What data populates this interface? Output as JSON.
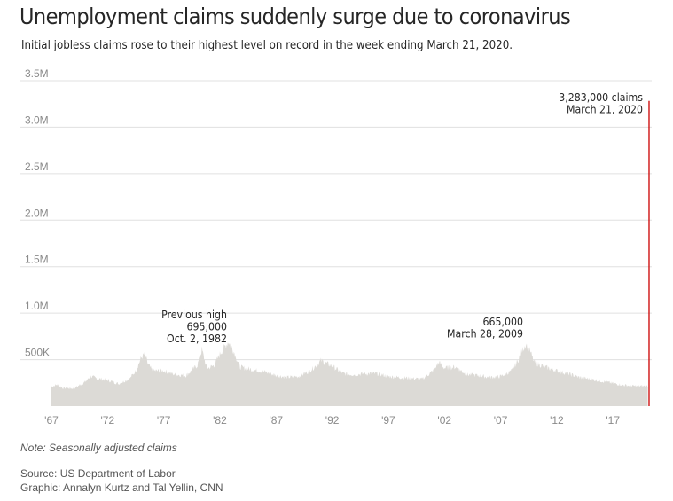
{
  "header": {
    "title": "Unemployment claims suddenly surge due to coronavirus",
    "subtitle": "Initial jobless claims rose to their highest level on record in the week ending March 21, 2020."
  },
  "footer": {
    "note": "Note: Seasonally adjusted claims",
    "source": "Source: US Department of Labor",
    "graphic": "Graphic: Annalyn Kurtz and Tal Yellin, CNN"
  },
  "colors": {
    "area": "#dcdad6",
    "spike": "#cc0000",
    "grid": "#e0e0e0",
    "text": "#262626",
    "axis": "#8a8a8a"
  },
  "chart_data": {
    "type": "area",
    "title": "Unemployment claims suddenly surge due to coronavirus",
    "xlabel": "",
    "ylabel": "",
    "xlim": [
      1967,
      2020.3
    ],
    "ylim": [
      0,
      3500000
    ],
    "grid": true,
    "y_ticks": [
      {
        "value": 500000,
        "label": "500K"
      },
      {
        "value": 1000000,
        "label": "1.0M"
      },
      {
        "value": 1500000,
        "label": "1.5M"
      },
      {
        "value": 2000000,
        "label": "2.0M"
      },
      {
        "value": 2500000,
        "label": "2.5M"
      },
      {
        "value": 3000000,
        "label": "3.0M"
      },
      {
        "value": 3500000,
        "label": "3.5M"
      }
    ],
    "x_ticks": [
      {
        "value": 1967,
        "label": "'67"
      },
      {
        "value": 1972,
        "label": "'72"
      },
      {
        "value": 1977,
        "label": "'77"
      },
      {
        "value": 1982,
        "label": "'82"
      },
      {
        "value": 1987,
        "label": "'87"
      },
      {
        "value": 1992,
        "label": "'92"
      },
      {
        "value": 1997,
        "label": "'97"
      },
      {
        "value": 2002,
        "label": "'02"
      },
      {
        "value": 2007,
        "label": "'07"
      },
      {
        "value": 2012,
        "label": "'12"
      },
      {
        "value": 2017,
        "label": "'17"
      }
    ],
    "series": [
      {
        "name": "Initial jobless claims (seasonally adjusted)",
        "x": [
          1967,
          1967.5,
          1968,
          1969,
          1970,
          1970.5,
          1971,
          1972,
          1973,
          1974,
          1974.5,
          1975,
          1975.3,
          1975.6,
          1976,
          1977,
          1978,
          1979,
          1980,
          1980.4,
          1980.8,
          1981,
          1981.5,
          1982,
          1982.75,
          1983.2,
          1983.8,
          1985,
          1986,
          1987,
          1988,
          1989,
          1990,
          1990.5,
          1991,
          1991.5,
          1992,
          1993,
          1994,
          1995,
          1996,
          1997,
          1998,
          1999,
          2000,
          2001,
          2001.5,
          2002,
          2003,
          2003.5,
          2004,
          2005,
          2006,
          2007,
          2008,
          2008.5,
          2009,
          2009.25,
          2009.6,
          2010,
          2011,
          2012,
          2013,
          2014,
          2015,
          2016,
          2017,
          2018,
          2019,
          2020.1
        ],
        "values": [
          210000,
          230000,
          195000,
          190000,
          260000,
          320000,
          300000,
          280000,
          240000,
          300000,
          380000,
          520000,
          560000,
          450000,
          380000,
          380000,
          340000,
          330000,
          440000,
          610000,
          420000,
          410000,
          440000,
          560000,
          695000,
          600000,
          420000,
          390000,
          370000,
          330000,
          310000,
          320000,
          380000,
          430000,
          490000,
          460000,
          430000,
          350000,
          340000,
          350000,
          350000,
          320000,
          310000,
          300000,
          290000,
          380000,
          470000,
          410000,
          420000,
          380000,
          340000,
          330000,
          310000,
          320000,
          380000,
          480000,
          620000,
          665000,
          600000,
          470000,
          420000,
          380000,
          350000,
          310000,
          290000,
          270000,
          245000,
          225000,
          215000,
          215000
        ]
      },
      {
        "name": "Week ending March 21, 2020",
        "x": [
          2020.22
        ],
        "values": [
          3283000
        ]
      }
    ],
    "annotations": [
      {
        "lines": [
          "Previous high",
          "695,000",
          "Oct. 2, 1982"
        ],
        "x": 1982.75,
        "value": 695000
      },
      {
        "lines": [
          "665,000",
          "March 28, 2009"
        ],
        "x": 2009.24,
        "value": 665000
      },
      {
        "lines": [
          "3,283,000 claims",
          "March 21, 2020"
        ],
        "x": 2020.22,
        "value": 3283000
      }
    ]
  }
}
